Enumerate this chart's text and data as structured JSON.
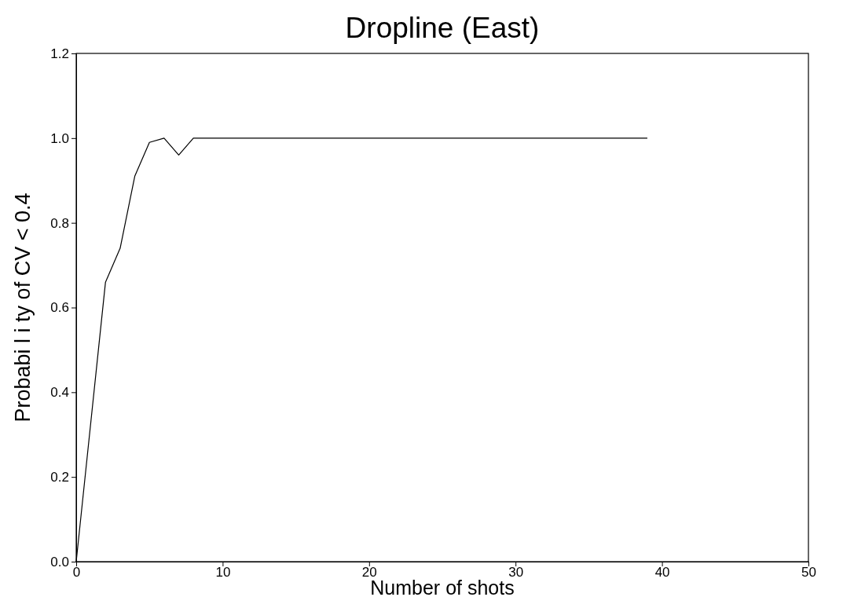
{
  "chart_data": {
    "type": "line",
    "title": "Dropline (East)",
    "xlabel": "Number of shots",
    "ylabel": "Probabi l i ty of CV < 0.4",
    "x": [
      0,
      2,
      3,
      4,
      5,
      6,
      7,
      8,
      39
    ],
    "series": [
      {
        "color": "#000000",
        "values": [
          0,
          0.66,
          0.74,
          0.91,
          0.99,
          1.0,
          0.96,
          1.0,
          1.0
        ]
      }
    ],
    "xlim": [
      0,
      50
    ],
    "xticks": [
      0,
      10,
      20,
      30,
      40,
      50
    ],
    "ylim": [
      0,
      1.2
    ],
    "yticks": [
      {
        "value": 0,
        "label": "0.0"
      },
      0.2,
      0.4,
      0.6,
      0.8,
      {
        "value": 1,
        "label": "1.0"
      },
      1.2
    ],
    "grid": false,
    "marker": "none",
    "line_style": "solid"
  }
}
